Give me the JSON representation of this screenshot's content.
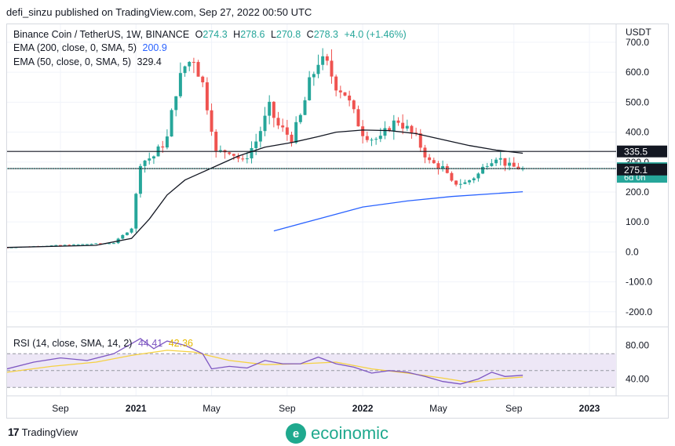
{
  "publisher_line": "defi_sinzu published on TradingView.com, Sep 27, 2022 00:50 UTC",
  "legend": {
    "symbol": "Binance Coin / TetherUS, 1W, BINANCE",
    "o_label": "O",
    "o_value": "274.3",
    "h_label": "H",
    "h_value": "278.6",
    "l_label": "L",
    "l_value": "270.8",
    "c_label": "C",
    "c_value": "278.3",
    "change": "+4.0 (+1.46%)",
    "ema200_label": "EMA (200, close, 0, SMA, 5)",
    "ema200_value": "200.9",
    "ema50_label": "EMA (50, close, 0, SMA, 5)",
    "ema50_value": "329.4"
  },
  "rsi_legend": {
    "label": "RSI (14, close, SMA, 14, 2)",
    "rsi_value": "44.41",
    "sma_value": "42.36"
  },
  "colors": {
    "up": "#26a69a",
    "down": "#ef5350",
    "ema200": "#2962ff",
    "ema50": "#131722",
    "rsi": "#7e57c2",
    "rsi_ma": "#f5d142",
    "rsi_band": "#ede7f6",
    "grid": "#f0f3fa"
  },
  "chart_data": [
    {
      "type": "candlestick",
      "title": "Binance Coin / TetherUS, 1W, BINANCE",
      "ylabel": "USDT",
      "y_ticks": [
        700,
        600,
        500,
        400,
        300,
        200,
        100,
        0,
        -100,
        -200
      ],
      "ylim": [
        -245,
        760
      ],
      "x_tick_labels": [
        "Sep",
        "2021",
        "May",
        "Sep",
        "2022",
        "May",
        "Sep",
        "2023"
      ],
      "x_tick_weeks": [
        12,
        29,
        46,
        63,
        80,
        97,
        114,
        131
      ],
      "xlim_weeks": [
        0,
        137
      ],
      "last_week_index": 116,
      "horizontal_lines": [
        335.5,
        278.3
      ],
      "price_labels": [
        {
          "value": 335.5,
          "text": "335.5",
          "style": "dark"
        },
        {
          "value": 278.3,
          "text": "278.3",
          "countdown": "6d 0h",
          "style": "teal"
        },
        {
          "value": 275.1,
          "text": "275.1",
          "style": "dark"
        }
      ],
      "key_points": [
        {
          "week": 0,
          "close": 15
        },
        {
          "week": 24,
          "close": 30
        },
        {
          "week": 28,
          "close": 80
        },
        {
          "week": 30,
          "close": 300
        },
        {
          "week": 33,
          "close": 320
        },
        {
          "week": 36,
          "close": 380
        },
        {
          "week": 38,
          "close": 540
        },
        {
          "week": 40,
          "close": 620
        },
        {
          "week": 42,
          "close": 650
        },
        {
          "week": 44,
          "close": 560
        },
        {
          "week": 46,
          "close": 420
        },
        {
          "week": 47,
          "close": 330
        },
        {
          "week": 50,
          "close": 340
        },
        {
          "week": 53,
          "close": 300
        },
        {
          "week": 56,
          "close": 370
        },
        {
          "week": 59,
          "close": 480
        },
        {
          "week": 61,
          "close": 420
        },
        {
          "week": 64,
          "close": 380
        },
        {
          "week": 66,
          "close": 450
        },
        {
          "week": 68,
          "close": 560
        },
        {
          "week": 70,
          "close": 640
        },
        {
          "week": 72,
          "close": 620
        },
        {
          "week": 74,
          "close": 560
        },
        {
          "week": 76,
          "close": 530
        },
        {
          "week": 78,
          "close": 460
        },
        {
          "week": 80,
          "close": 400
        },
        {
          "week": 82,
          "close": 380
        },
        {
          "week": 84,
          "close": 375
        },
        {
          "week": 86,
          "close": 420
        },
        {
          "week": 88,
          "close": 440
        },
        {
          "week": 90,
          "close": 410
        },
        {
          "week": 92,
          "close": 380
        },
        {
          "week": 95,
          "close": 300
        },
        {
          "week": 98,
          "close": 280
        },
        {
          "week": 100,
          "close": 230
        },
        {
          "week": 103,
          "close": 230
        },
        {
          "week": 106,
          "close": 260
        },
        {
          "week": 108,
          "close": 300
        },
        {
          "week": 110,
          "close": 320
        },
        {
          "week": 113,
          "close": 285
        },
        {
          "week": 116,
          "close": 278.3
        }
      ],
      "ema50": [
        {
          "week": 0,
          "value": 15
        },
        {
          "week": 20,
          "value": 22
        },
        {
          "week": 28,
          "value": 45
        },
        {
          "week": 32,
          "value": 110
        },
        {
          "week": 36,
          "value": 190
        },
        {
          "week": 40,
          "value": 240
        },
        {
          "week": 46,
          "value": 280
        },
        {
          "week": 52,
          "value": 320
        },
        {
          "week": 58,
          "value": 350
        },
        {
          "week": 64,
          "value": 365
        },
        {
          "week": 70,
          "value": 385
        },
        {
          "week": 74,
          "value": 400
        },
        {
          "week": 80,
          "value": 407
        },
        {
          "week": 86,
          "value": 405
        },
        {
          "week": 92,
          "value": 395
        },
        {
          "week": 98,
          "value": 375
        },
        {
          "week": 104,
          "value": 355
        },
        {
          "week": 110,
          "value": 340
        },
        {
          "week": 116,
          "value": 329.4
        }
      ],
      "ema200": [
        {
          "week": 60,
          "value": 70
        },
        {
          "week": 70,
          "value": 110
        },
        {
          "week": 80,
          "value": 150
        },
        {
          "week": 90,
          "value": 170
        },
        {
          "week": 100,
          "value": 185
        },
        {
          "week": 110,
          "value": 195
        },
        {
          "week": 116,
          "value": 200.9
        }
      ]
    },
    {
      "type": "line",
      "title": "RSI (14, close, SMA, 14, 2)",
      "y_ticks": [
        80,
        40
      ],
      "ylim": [
        20,
        100
      ],
      "band": [
        30,
        70
      ],
      "series": [
        {
          "name": "RSI",
          "points": [
            {
              "week": 0,
              "value": 52
            },
            {
              "week": 6,
              "value": 60
            },
            {
              "week": 12,
              "value": 65
            },
            {
              "week": 18,
              "value": 62
            },
            {
              "week": 24,
              "value": 70
            },
            {
              "week": 28,
              "value": 82
            },
            {
              "week": 30,
              "value": 88
            },
            {
              "week": 33,
              "value": 76
            },
            {
              "week": 36,
              "value": 85
            },
            {
              "week": 40,
              "value": 80
            },
            {
              "week": 44,
              "value": 70
            },
            {
              "week": 46,
              "value": 52
            },
            {
              "week": 50,
              "value": 55
            },
            {
              "week": 54,
              "value": 53
            },
            {
              "week": 58,
              "value": 62
            },
            {
              "week": 62,
              "value": 58
            },
            {
              "week": 66,
              "value": 58
            },
            {
              "week": 70,
              "value": 66
            },
            {
              "week": 74,
              "value": 58
            },
            {
              "week": 78,
              "value": 54
            },
            {
              "week": 82,
              "value": 47
            },
            {
              "week": 86,
              "value": 50
            },
            {
              "week": 90,
              "value": 48
            },
            {
              "week": 94,
              "value": 43
            },
            {
              "week": 98,
              "value": 37
            },
            {
              "week": 102,
              "value": 34
            },
            {
              "week": 106,
              "value": 40
            },
            {
              "week": 109,
              "value": 48
            },
            {
              "week": 112,
              "value": 43
            },
            {
              "week": 116,
              "value": 44.41
            }
          ]
        },
        {
          "name": "RSI-based MA",
          "points": [
            {
              "week": 0,
              "value": 48
            },
            {
              "week": 10,
              "value": 55
            },
            {
              "week": 20,
              "value": 60
            },
            {
              "week": 28,
              "value": 68
            },
            {
              "week": 36,
              "value": 74
            },
            {
              "week": 42,
              "value": 72
            },
            {
              "week": 50,
              "value": 62
            },
            {
              "week": 58,
              "value": 57
            },
            {
              "week": 66,
              "value": 58
            },
            {
              "week": 74,
              "value": 60
            },
            {
              "week": 82,
              "value": 52
            },
            {
              "week": 90,
              "value": 47
            },
            {
              "week": 98,
              "value": 41
            },
            {
              "week": 104,
              "value": 36
            },
            {
              "week": 110,
              "value": 40
            },
            {
              "week": 116,
              "value": 42.36
            }
          ]
        }
      ]
    }
  ]
}
